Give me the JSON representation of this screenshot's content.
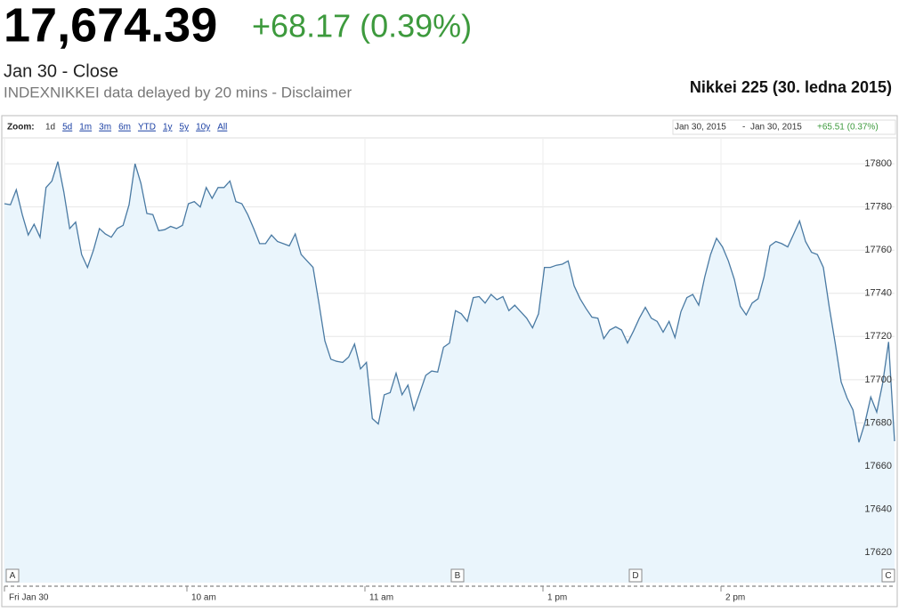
{
  "header": {
    "price": "17,674.39",
    "change": "+68.17 (0.39%)",
    "date_line": "Jan 30 - Close",
    "delay_note": "INDEXNIKKEI data delayed by 20 mins - Disclaimer",
    "caption": "Nikkei 225 (30. ledna 2015)"
  },
  "toolbar": {
    "zoom_label": "Zoom:",
    "zoom_options": [
      "1d",
      "5d",
      "1m",
      "3m",
      "6m",
      "YTD",
      "1y",
      "5y",
      "10y",
      "All"
    ],
    "range_start": "Jan 30, 2015",
    "range_separator": "-",
    "range_end": "Jan 30, 2015",
    "range_change": "+65.51 (0.37%)"
  },
  "chart_data": {
    "type": "line",
    "color": "#4a7aa3",
    "fill": "#eaf5fc",
    "grid": true,
    "values": [
      17781.5,
      17781,
      17788,
      17776.5,
      17767,
      17772,
      17766,
      17789,
      17792,
      17801,
      17787,
      17770,
      17773,
      17758,
      17752,
      17760,
      17770,
      17767.5,
      17766,
      17770,
      17771.5,
      17781,
      17800,
      17791,
      17777,
      17776.5,
      17769,
      17769.5,
      17771,
      17770,
      17771.5,
      17781.5,
      17782.5,
      17780,
      17789,
      17784,
      17789,
      17789,
      17792,
      17782.5,
      17781.5,
      17776.5,
      17770,
      17763,
      17763,
      17767,
      17764,
      17763,
      17762,
      17767.5,
      17758,
      17755,
      17752,
      17735.5,
      17718,
      17709.5,
      17708.5,
      17708,
      17710.5,
      17716.5,
      17705,
      17708,
      17682,
      17679.5,
      17693,
      17694,
      17703,
      17693,
      17697.5,
      17686,
      17694,
      17702,
      17704,
      17703.5,
      17715,
      17717,
      17732,
      17730.5,
      17727,
      17738,
      17738.5,
      17735.5,
      17739.5,
      17737,
      17738.5,
      17732,
      17734.5,
      17731.5,
      17728.5,
      17724,
      17730.5,
      17752,
      17752,
      17753,
      17753.5,
      17755,
      17743.5,
      17737.5,
      17733,
      17729,
      17728.5,
      17719,
      17723,
      17724.5,
      17723,
      17717,
      17722.5,
      17728.5,
      17733.5,
      17728.5,
      17727,
      17722,
      17727,
      17719.5,
      17731.5,
      17738,
      17739.5,
      17734.5,
      17747.5,
      17758,
      17765.5,
      17761.5,
      17755,
      17746.5,
      17734,
      17730,
      17735.5,
      17737.5,
      17747.5,
      17762,
      17764,
      17763,
      17761.5,
      17767.5,
      17773.5,
      17764,
      17759,
      17758,
      17752,
      17733.5,
      17717,
      17699,
      17691.5,
      17686,
      17671,
      17680,
      17692,
      17685,
      17698.5,
      17717.5,
      17671.5
    ],
    "xlim": [
      0,
      150
    ],
    "xticks": [
      {
        "value": 0,
        "label": "Fri Jan 30"
      },
      {
        "value": 30.75,
        "label": "10 am"
      },
      {
        "value": 60.75,
        "label": "11 am"
      },
      {
        "value": 90.75,
        "label": "1 pm"
      },
      {
        "value": 120.75,
        "label": "2 pm"
      }
    ],
    "ylim": [
      17606,
      17812
    ],
    "yticks": [
      17620,
      17640,
      17660,
      17680,
      17700,
      17720,
      17740,
      17760,
      17780,
      17800
    ],
    "annotations": [
      {
        "label": "A",
        "x": 1.35
      },
      {
        "label": "B",
        "x": 76.35
      },
      {
        "label": "D",
        "x": 106.35
      },
      {
        "label": "C",
        "x": 148.95
      }
    ]
  }
}
